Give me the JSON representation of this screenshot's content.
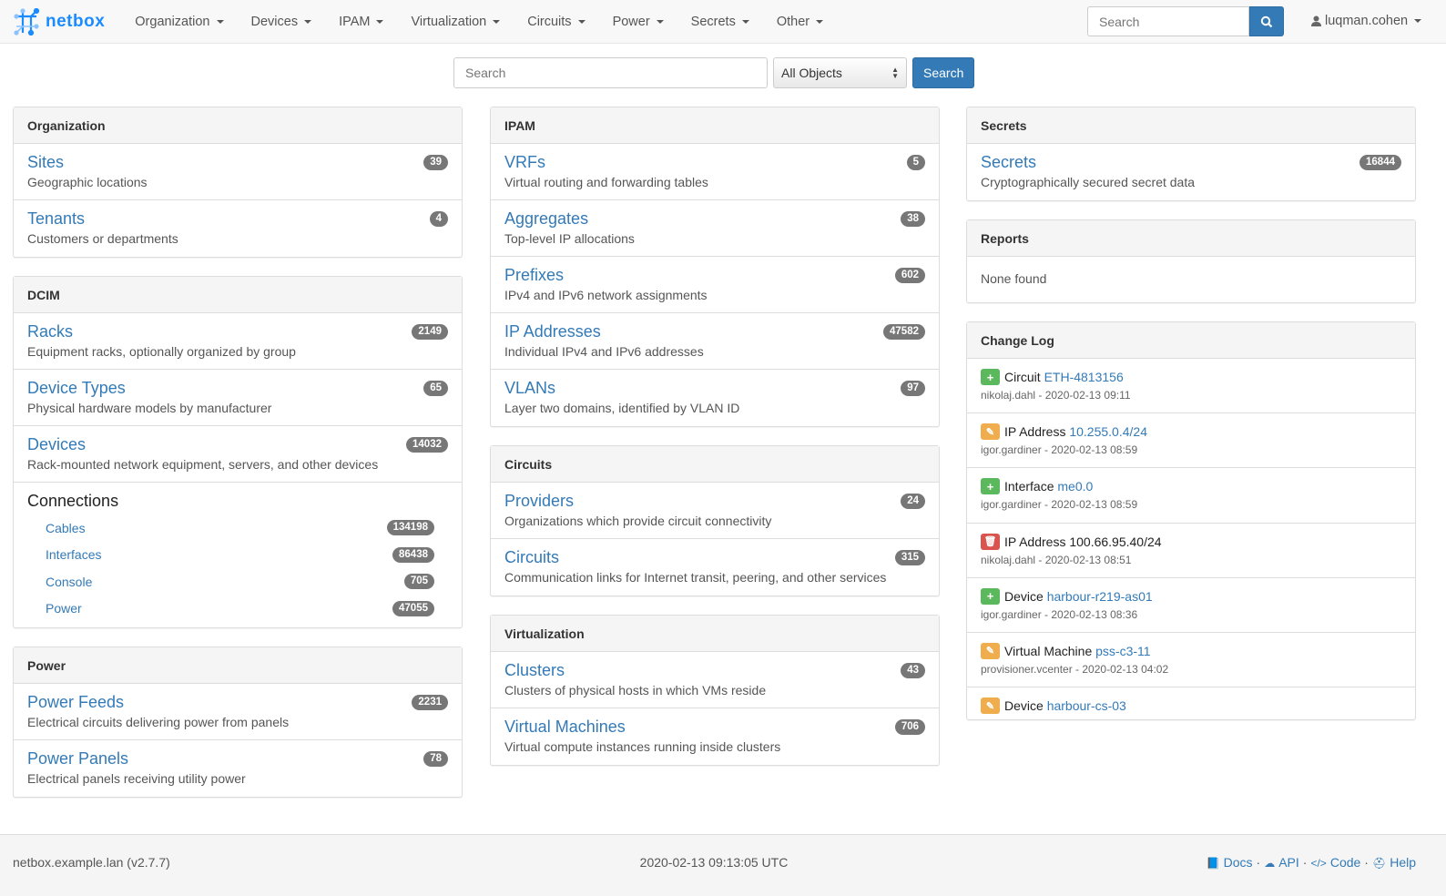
{
  "brand": {
    "name": "netbox"
  },
  "nav": {
    "menus": [
      "Organization",
      "Devices",
      "IPAM",
      "Virtualization",
      "Circuits",
      "Power",
      "Secrets",
      "Other"
    ],
    "search_placeholder": "Search",
    "user": "luqman.cohen"
  },
  "search": {
    "placeholder": "Search",
    "scope": "All Objects",
    "button": "Search"
  },
  "columns": [
    [
      {
        "title": "Organization",
        "items": [
          {
            "label": "Sites",
            "desc": "Geographic locations",
            "count": "39"
          },
          {
            "label": "Tenants",
            "desc": "Customers or departments",
            "count": "4"
          }
        ]
      },
      {
        "title": "DCIM",
        "items": [
          {
            "label": "Racks",
            "desc": "Equipment racks, optionally organized by group",
            "count": "2149"
          },
          {
            "label": "Device Types",
            "desc": "Physical hardware models by manufacturer",
            "count": "65"
          },
          {
            "label": "Devices",
            "desc": "Rack-mounted network equipment, servers, and other devices",
            "count": "14032"
          }
        ],
        "connections": {
          "title": "Connections",
          "items": [
            {
              "label": "Cables",
              "count": "134198"
            },
            {
              "label": "Interfaces",
              "count": "86438"
            },
            {
              "label": "Console",
              "count": "705"
            },
            {
              "label": "Power",
              "count": "47055"
            }
          ]
        }
      },
      {
        "title": "Power",
        "items": [
          {
            "label": "Power Feeds",
            "desc": "Electrical circuits delivering power from panels",
            "count": "2231"
          },
          {
            "label": "Power Panels",
            "desc": "Electrical panels receiving utility power",
            "count": "78"
          }
        ]
      }
    ],
    [
      {
        "title": "IPAM",
        "items": [
          {
            "label": "VRFs",
            "desc": "Virtual routing and forwarding tables",
            "count": "5"
          },
          {
            "label": "Aggregates",
            "desc": "Top-level IP allocations",
            "count": "38"
          },
          {
            "label": "Prefixes",
            "desc": "IPv4 and IPv6 network assignments",
            "count": "602"
          },
          {
            "label": "IP Addresses",
            "desc": "Individual IPv4 and IPv6 addresses",
            "count": "47582"
          },
          {
            "label": "VLANs",
            "desc": "Layer two domains, identified by VLAN ID",
            "count": "97"
          }
        ]
      },
      {
        "title": "Circuits",
        "items": [
          {
            "label": "Providers",
            "desc": "Organizations which provide circuit connectivity",
            "count": "24"
          },
          {
            "label": "Circuits",
            "desc": "Communication links for Internet transit, peering, and other services",
            "count": "315"
          }
        ]
      },
      {
        "title": "Virtualization",
        "items": [
          {
            "label": "Clusters",
            "desc": "Clusters of physical hosts in which VMs reside",
            "count": "43"
          },
          {
            "label": "Virtual Machines",
            "desc": "Virtual compute instances running inside clusters",
            "count": "706"
          }
        ]
      }
    ],
    [
      {
        "title": "Secrets",
        "items": [
          {
            "label": "Secrets",
            "desc": "Cryptographically secured secret data",
            "count": "16844"
          }
        ]
      },
      {
        "title": "Reports",
        "none": "None found"
      }
    ]
  ],
  "changelog": {
    "title": "Change Log",
    "entries": [
      {
        "action": "create",
        "type": "Circuit",
        "object": "ETH-4813156",
        "linked": true,
        "meta": "nikolaj.dahl - 2020-02-13 09:11"
      },
      {
        "action": "update",
        "type": "IP Address",
        "object": "10.255.0.4/24",
        "linked": true,
        "meta": "igor.gardiner - 2020-02-13 08:59"
      },
      {
        "action": "create",
        "type": "Interface",
        "object": "me0.0",
        "linked": true,
        "meta": "igor.gardiner - 2020-02-13 08:59"
      },
      {
        "action": "delete",
        "type": "IP Address",
        "object": "100.66.95.40/24",
        "linked": false,
        "meta": "nikolaj.dahl - 2020-02-13 08:51"
      },
      {
        "action": "create",
        "type": "Device",
        "object": "harbour-r219-as01",
        "linked": true,
        "meta": "igor.gardiner - 2020-02-13 08:36"
      },
      {
        "action": "update",
        "type": "Virtual Machine",
        "object": "pss-c3-11",
        "linked": true,
        "meta": "provisioner.vcenter - 2020-02-13 04:02"
      },
      {
        "action": "update",
        "type": "Device",
        "object": "harbour-cs-03",
        "linked": true,
        "meta": ""
      }
    ]
  },
  "action_colors": {
    "create": "#5cb85c",
    "update": "#f0ad4e",
    "delete": "#d9534f"
  },
  "footer": {
    "host": "netbox.example.lan (v2.7.7)",
    "time": "2020-02-13 09:13:05 UTC",
    "links": [
      {
        "label": "Docs",
        "icon": "book-icon"
      },
      {
        "label": "API",
        "icon": "cloud-icon"
      },
      {
        "label": "Code",
        "icon": "code-icon"
      },
      {
        "label": "Help",
        "icon": "lifebuoy-icon"
      }
    ]
  }
}
